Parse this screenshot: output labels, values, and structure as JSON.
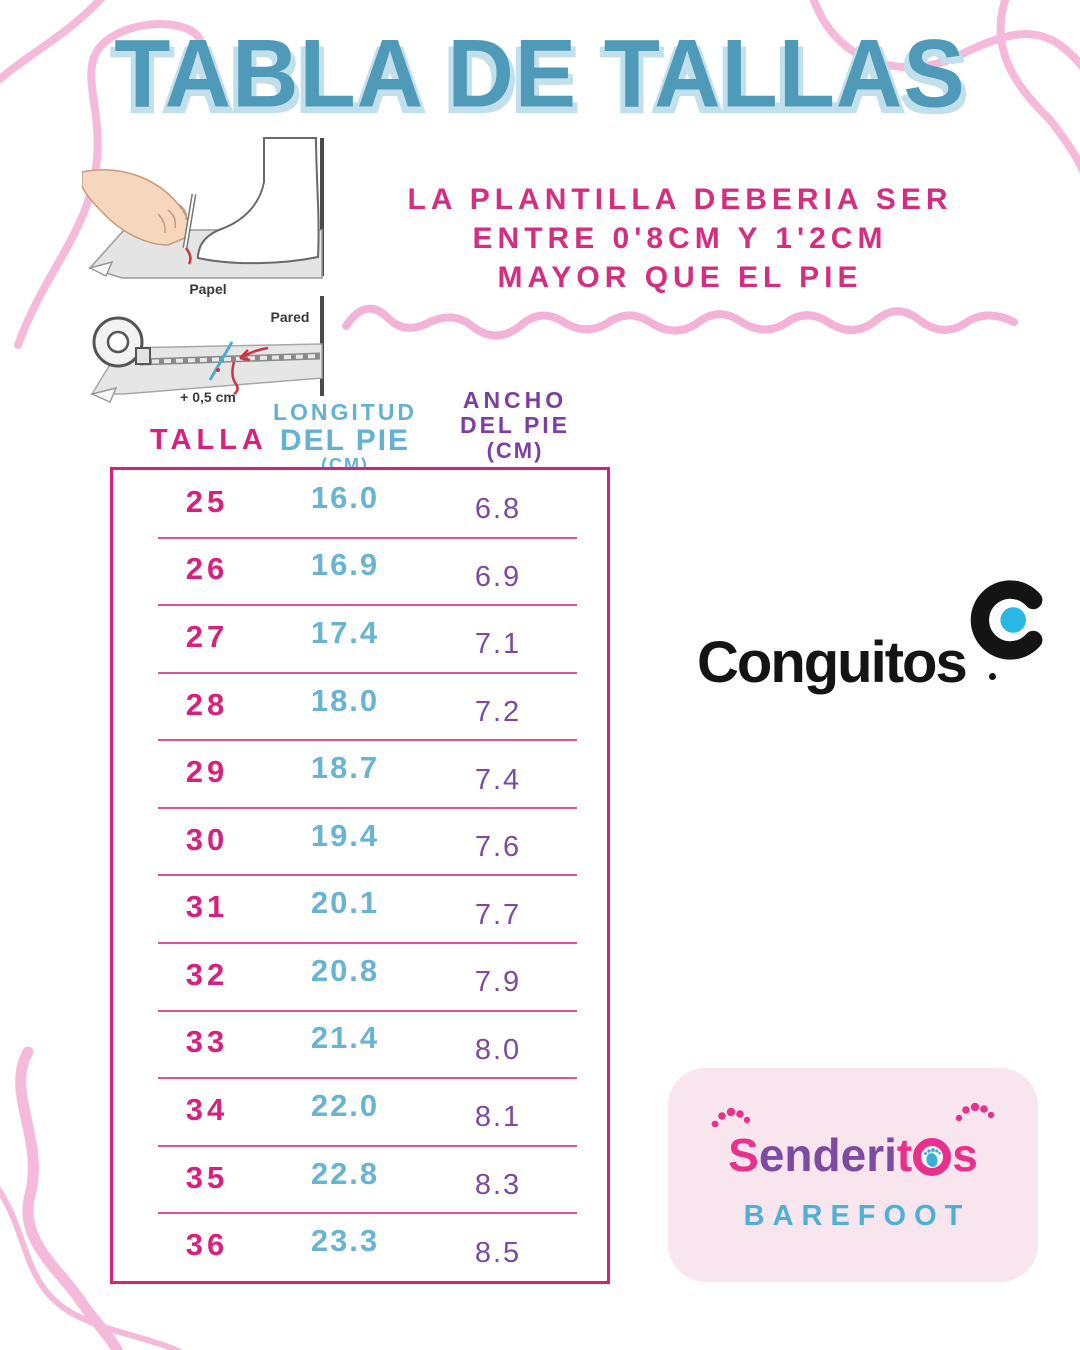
{
  "title": "TABLA DE TALLAS",
  "note_lines": [
    "LA PLANTILLA DEBERIA SER",
    "ENTRE 0'8CM Y 1'2CM",
    "MAYOR QUE EL PIE"
  ],
  "illustration": {
    "paper_label": "Papel",
    "wall_label": "Pared",
    "offset_label": "+ 0,5 cm"
  },
  "table": {
    "headers": {
      "size_label": "TALLA",
      "length_lines": [
        "LONGITUD",
        "DEL PIE",
        "(CM)"
      ],
      "width_lines": [
        "ANCHO",
        "DEL PIE",
        "(CM)"
      ]
    },
    "rows": [
      {
        "size": "25",
        "length": "16.0",
        "width": "6.8"
      },
      {
        "size": "26",
        "length": "16.9",
        "width": "6.9"
      },
      {
        "size": "27",
        "length": "17.4",
        "width": "7.1"
      },
      {
        "size": "28",
        "length": "18.0",
        "width": "7.2"
      },
      {
        "size": "29",
        "length": "18.7",
        "width": "7.4"
      },
      {
        "size": "30",
        "length": "19.4",
        "width": "7.6"
      },
      {
        "size": "31",
        "length": "20.1",
        "width": "7.7"
      },
      {
        "size": "32",
        "length": "20.8",
        "width": "7.9"
      },
      {
        "size": "33",
        "length": "21.4",
        "width": "8.0"
      },
      {
        "size": "34",
        "length": "22.0",
        "width": "8.1"
      },
      {
        "size": "35",
        "length": "22.8",
        "width": "8.3"
      },
      {
        "size": "36",
        "length": "23.3",
        "width": "8.5"
      }
    ]
  },
  "brand": {
    "name": "Conguitos"
  },
  "logo": {
    "letters": [
      {
        "ch": "S",
        "color": "pink"
      },
      {
        "ch": "e",
        "color": "purple"
      },
      {
        "ch": "n",
        "color": "purple"
      },
      {
        "ch": "d",
        "color": "purple"
      },
      {
        "ch": "e",
        "color": "purple"
      },
      {
        "ch": "r",
        "color": "purple"
      },
      {
        "ch": "i",
        "color": "purple"
      },
      {
        "ch": "t",
        "color": "pink"
      },
      {
        "ch": "o",
        "color": "pink",
        "foot": true
      },
      {
        "ch": "s",
        "color": "pink"
      }
    ],
    "subtitle": "BAREFOOT"
  },
  "colors": {
    "title_blue": "#4f9ab9",
    "title_shadow": "#c2e0ec",
    "note_pink": "#d42e80",
    "magenta": "#d6217e",
    "value_blue": "#68b4d2",
    "value_purple": "#7c4a9e",
    "squiggle_pink": "#f5bada",
    "card_bg": "#f8e5ee",
    "logo_pink": "#e8308c",
    "logo_purple": "#7c4ca3",
    "barefoot_blue": "#4fb0d6",
    "conguitos_dot": "#29b7e3"
  }
}
